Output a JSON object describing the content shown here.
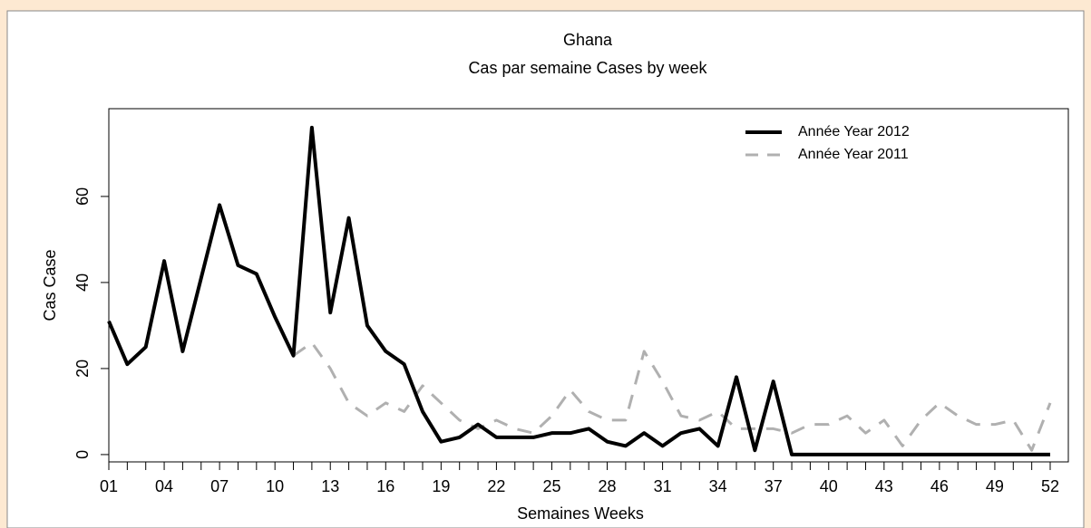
{
  "chart_data": {
    "type": "line",
    "title": "Ghana",
    "subtitle": "Cas par semaine Cases by week",
    "x_label": "Semaines Weeks",
    "y_label": "Cas Case",
    "categories": [
      "01",
      null,
      null,
      "04",
      null,
      null,
      "07",
      null,
      null,
      "10",
      null,
      null,
      "13",
      null,
      null,
      "16",
      null,
      null,
      "19",
      null,
      null,
      "22",
      null,
      null,
      "25",
      null,
      null,
      "28",
      null,
      null,
      "31",
      null,
      null,
      "34",
      null,
      null,
      "37",
      null,
      null,
      "40",
      null,
      null,
      "43",
      null,
      null,
      "46",
      null,
      null,
      "49",
      null,
      null,
      "52"
    ],
    "series": [
      {
        "name": "Année Year 2012",
        "color": "#000000",
        "dashed": false,
        "values": [
          31,
          21,
          25,
          45,
          24,
          41,
          58,
          44,
          42,
          32,
          23,
          76,
          33,
          55,
          30,
          24,
          21,
          10,
          3,
          4,
          7,
          4,
          4,
          4,
          5,
          5,
          6,
          3,
          2,
          5,
          2,
          5,
          6,
          2,
          18,
          1,
          17,
          0,
          0,
          0,
          0,
          0,
          0,
          0,
          0,
          0,
          0,
          0,
          0,
          0,
          0,
          0
        ]
      },
      {
        "name": "Année Year 2011",
        "color": "#b0b0b0",
        "dashed": true,
        "values": [
          null,
          null,
          null,
          null,
          null,
          null,
          null,
          null,
          null,
          null,
          23,
          26,
          20,
          12,
          9,
          12,
          10,
          16,
          12,
          8,
          6,
          8,
          6,
          5,
          9,
          15,
          10,
          8,
          8,
          24,
          17,
          9,
          8,
          10,
          6,
          6,
          6,
          5,
          7,
          7,
          9,
          5,
          8,
          2,
          8,
          12,
          9,
          7,
          7,
          8,
          1,
          12
        ]
      }
    ],
    "ylim": [
      -1.7,
      80.4
    ],
    "yticks": [
      0,
      20,
      40,
      60
    ],
    "legend": "upper right"
  }
}
